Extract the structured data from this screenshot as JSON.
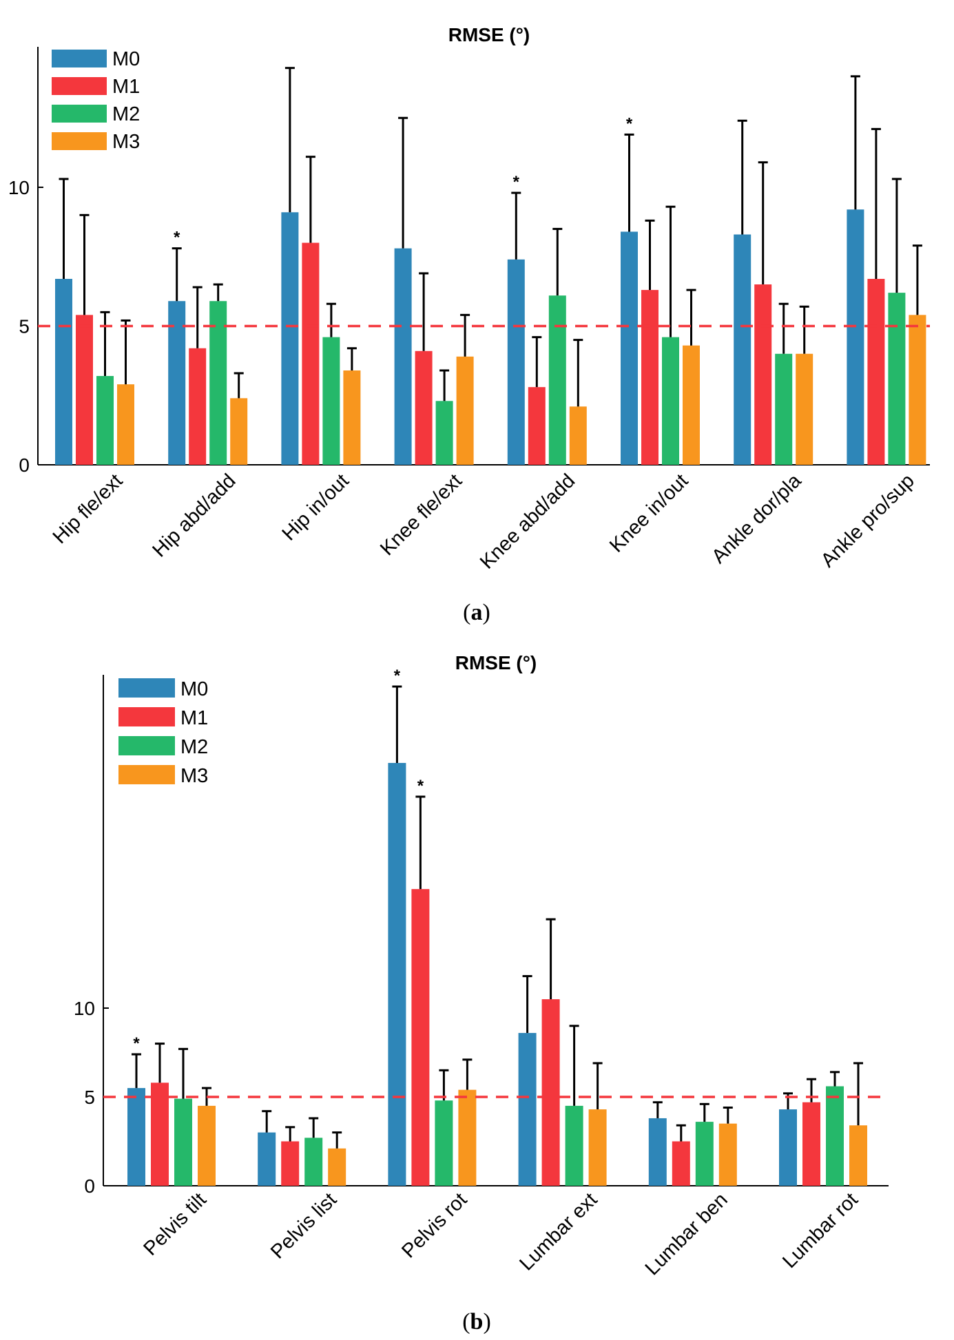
{
  "figure_captions": [
    {
      "open": "(",
      "letter": "a",
      "close": ")"
    },
    {
      "open": "(",
      "letter": "b",
      "close": ")"
    }
  ],
  "chart_data": [
    {
      "type": "bar",
      "title": "RMSE (°)",
      "xlabel": "",
      "ylabel": "",
      "ylim": [
        0,
        16
      ],
      "yticks": [
        0,
        5,
        10
      ],
      "reference_line": {
        "value": 5,
        "style": "dashed",
        "color": "#f4373d"
      },
      "legend_position": "top-left",
      "categories": [
        "Hip fle/ext",
        "Hip abd/add",
        "Hip in/out",
        "Knee fle/ext",
        "Knee abd/add",
        "Knee in/out",
        "Ankle dor/pla",
        "Ankle pro/sup"
      ],
      "series": [
        {
          "name": "M0",
          "color": "#2e86b8",
          "values": [
            6.7,
            5.9,
            9.1,
            7.8,
            7.4,
            8.4,
            8.3,
            9.2
          ],
          "error_upper": [
            10.3,
            7.8,
            14.3,
            12.5,
            9.8,
            11.9,
            12.4,
            14.0
          ]
        },
        {
          "name": "M1",
          "color": "#f4373d",
          "values": [
            5.4,
            4.2,
            8.0,
            4.1,
            2.8,
            6.3,
            6.5,
            6.7
          ],
          "error_upper": [
            9.0,
            6.4,
            11.1,
            6.9,
            4.6,
            8.8,
            10.9,
            12.1
          ]
        },
        {
          "name": "M2",
          "color": "#25b86a",
          "values": [
            3.2,
            5.9,
            4.6,
            2.3,
            6.1,
            4.6,
            4.0,
            6.2
          ],
          "error_upper": [
            5.5,
            6.5,
            5.8,
            3.4,
            8.5,
            9.3,
            5.8,
            10.3
          ]
        },
        {
          "name": "M3",
          "color": "#f8961e",
          "values": [
            2.9,
            2.4,
            3.4,
            3.9,
            2.1,
            4.3,
            4.0,
            5.4
          ],
          "error_upper": [
            5.2,
            3.3,
            4.2,
            5.4,
            4.5,
            6.3,
            5.7,
            7.9
          ]
        }
      ],
      "significance": [
        {
          "category": 1,
          "series": 0,
          "label": "*"
        },
        {
          "category": 4,
          "series": 0,
          "label": "*"
        },
        {
          "category": 5,
          "series": 0,
          "label": "*"
        }
      ]
    },
    {
      "type": "bar",
      "title": "RMSE (°)",
      "xlabel": "",
      "ylabel": "",
      "ylim": [
        0,
        29
      ],
      "yticks": [
        0,
        5,
        10
      ],
      "reference_line": {
        "value": 5,
        "style": "dashed",
        "color": "#f4373d"
      },
      "legend_position": "top-left",
      "categories": [
        "Pelvis tilt",
        "Pelvis list",
        "Pelvis rot",
        "Lumbar ext",
        "Lumbar ben",
        "Lumbar rot"
      ],
      "series": [
        {
          "name": "M0",
          "color": "#2e86b8",
          "values": [
            5.5,
            3.0,
            23.8,
            8.6,
            3.8,
            4.3
          ],
          "error_upper": [
            7.4,
            4.2,
            28.1,
            11.8,
            4.7,
            5.2
          ]
        },
        {
          "name": "M1",
          "color": "#f4373d",
          "values": [
            5.8,
            2.5,
            16.7,
            10.5,
            2.5,
            4.7
          ],
          "error_upper": [
            8.0,
            3.3,
            21.9,
            15.0,
            3.4,
            6.0
          ]
        },
        {
          "name": "M2",
          "color": "#25b86a",
          "values": [
            4.9,
            2.7,
            4.8,
            4.5,
            3.6,
            5.6
          ],
          "error_upper": [
            7.7,
            3.8,
            6.5,
            9.0,
            4.6,
            6.4
          ]
        },
        {
          "name": "M3",
          "color": "#f8961e",
          "values": [
            4.5,
            2.1,
            5.4,
            4.3,
            3.5,
            3.4
          ],
          "error_upper": [
            5.5,
            3.0,
            7.1,
            6.9,
            4.4,
            6.9
          ]
        }
      ],
      "significance": [
        {
          "category": 0,
          "series": 0,
          "label": "*"
        },
        {
          "category": 2,
          "series": 0,
          "label": "*"
        },
        {
          "category": 2,
          "series": 1,
          "label": "*"
        }
      ]
    }
  ]
}
